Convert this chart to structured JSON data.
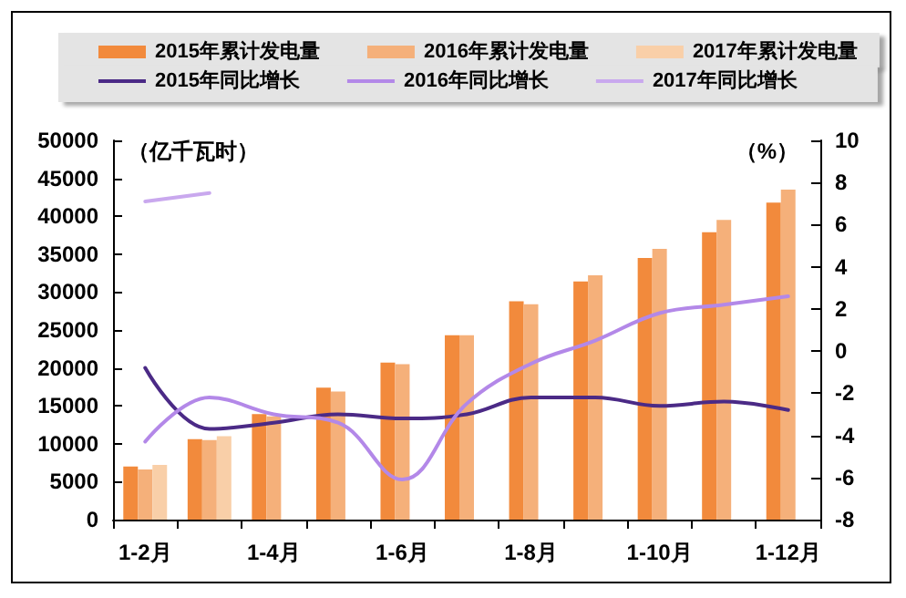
{
  "chart_data": {
    "type": "bar",
    "categories": [
      "1-2月",
      null,
      "1-4月",
      null,
      "1-6月",
      null,
      "1-8月",
      null,
      "1-10月",
      null,
      "1-12月"
    ],
    "ylabel": "（亿千瓦时）",
    "y2label": "（%）",
    "ylim": [
      0,
      50000
    ],
    "yticks": [
      0,
      5000,
      10000,
      15000,
      20000,
      25000,
      30000,
      35000,
      40000,
      45000,
      50000
    ],
    "y2lim": [
      -8,
      10
    ],
    "y2ticks": [
      -8,
      -6,
      -4,
      -2,
      0,
      2,
      4,
      6,
      8,
      10
    ],
    "grid": false,
    "legend": "top",
    "marker": "none",
    "line_style": "solid",
    "series": [
      {
        "name": "2015年累计发电量",
        "color": "#f28a3c",
        "values": [
          7000,
          10600,
          13900,
          17400,
          20700,
          24300,
          28800,
          31400,
          34500,
          37900,
          41800
        ]
      },
      {
        "name": "2016年累计发电量",
        "color": "#f5b07a",
        "values": [
          6600,
          10500,
          13600,
          16900,
          20500,
          24300,
          28400,
          32200,
          35700,
          39500,
          43500
        ]
      },
      {
        "name": "2017年累计发电量",
        "color": "#f9cfa8",
        "values": [
          7200,
          11000,
          null,
          null,
          null,
          null,
          null,
          null,
          null,
          null,
          null
        ]
      },
      {
        "name": "2015年同比增长",
        "type": "line",
        "axis": "y2",
        "color": "#4b2a86",
        "values": [
          -0.8,
          -3.7,
          -3.4,
          -3.0,
          -3.2,
          -3.0,
          -2.2,
          -2.2,
          -2.6,
          -2.4,
          -2.8
        ]
      },
      {
        "name": "2016年同比增长",
        "type": "line",
        "axis": "y2",
        "color": "#b388e8",
        "values": [
          -4.3,
          -2.2,
          -3.0,
          -3.4,
          -6.1,
          -2.5,
          -0.6,
          0.5,
          1.8,
          2.2,
          2.6
        ]
      },
      {
        "name": "2017年同比增长",
        "type": "line",
        "axis": "y2",
        "color": "#c9a8ee",
        "values": [
          7.1,
          7.5,
          null,
          null,
          null,
          null,
          null,
          null,
          null,
          null,
          null
        ]
      }
    ]
  }
}
